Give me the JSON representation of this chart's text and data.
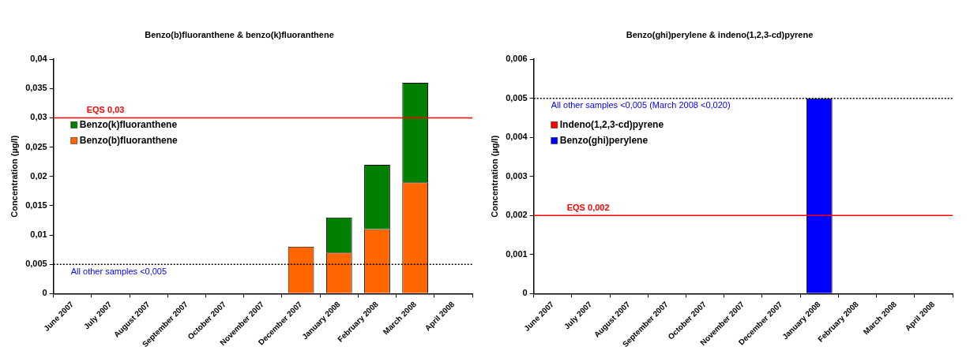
{
  "chart_data": [
    {
      "type": "bar",
      "title": "Benzo(b)fluoranthene & benzo(k)fluoranthene",
      "ylabel": "Concentration (µg/l)",
      "categories": [
        "June 2007",
        "July 2007",
        "August 2007",
        "September 2007",
        "October 2007",
        "November 2007",
        "December 2007",
        "January 2008",
        "February 2008",
        "March 2008",
        "April 2008"
      ],
      "stacked": true,
      "series": [
        {
          "name": "Benzo(b)fluoranthene",
          "color": "#ff6600",
          "values": [
            null,
            null,
            null,
            null,
            null,
            null,
            0.008,
            0.007,
            0.011,
            0.019,
            null
          ]
        },
        {
          "name": "Benzo(k)fluoranthene",
          "color": "#008000",
          "values": [
            null,
            null,
            null,
            null,
            null,
            null,
            null,
            0.006,
            0.011,
            0.017,
            null
          ]
        }
      ],
      "ylim": [
        0,
        0.04
      ],
      "yticks": [
        0,
        {
          "value": 0.005,
          "label": "0,005"
        },
        {
          "value": 0.01,
          "label": "0,01"
        },
        {
          "value": 0.015,
          "label": "0,015"
        },
        {
          "value": 0.02,
          "label": "0,02"
        },
        {
          "value": 0.025,
          "label": "0,025"
        },
        {
          "value": 0.03,
          "label": "0,03"
        },
        {
          "value": 0.035,
          "label": "0,035"
        },
        {
          "value": 0.04,
          "label": "0,04"
        }
      ],
      "ref_lines": [
        {
          "axis": "y",
          "value": 0.03,
          "label": "EQS 0,03",
          "color": "#ff0000",
          "line_style": "solid"
        },
        {
          "axis": "y",
          "value": 0.005,
          "label": "All other samples <0,005",
          "color": "#000000",
          "line_style": "dotted"
        }
      ],
      "grid": false,
      "legend": "left"
    },
    {
      "type": "bar",
      "title": "Benzo(ghi)perylene & indeno(1,2,3-cd)pyrene",
      "ylabel": "Concentration (µg/l)",
      "categories": [
        "June 2007",
        "July 2007",
        "August 2007",
        "September 2007",
        "October 2007",
        "November 2007",
        "December 2007",
        "January 2008",
        "February 2008",
        "March 2008",
        "April 2008"
      ],
      "stacked": true,
      "series": [
        {
          "name": "Benzo(ghi)perylene",
          "color": "#0000ff",
          "values": [
            null,
            null,
            null,
            null,
            null,
            null,
            null,
            0.005,
            null,
            null,
            null
          ]
        },
        {
          "name": "Indeno(1,2,3-cd)pyrene",
          "color": "#ff0000",
          "values": [
            null,
            null,
            null,
            null,
            null,
            null,
            null,
            null,
            null,
            null,
            null
          ]
        }
      ],
      "ylim": [
        0,
        0.006
      ],
      "yticks": [
        0,
        {
          "value": 0.001,
          "label": "0,001"
        },
        {
          "value": 0.002,
          "label": "0,002"
        },
        {
          "value": 0.003,
          "label": "0,003"
        },
        {
          "value": 0.004,
          "label": "0,004"
        },
        {
          "value": 0.005,
          "label": "0,005"
        },
        {
          "value": 0.006,
          "label": "0,006"
        }
      ],
      "ref_lines": [
        {
          "axis": "y",
          "value": 0.002,
          "label": "EQS 0,002",
          "color": "#ff0000",
          "line_style": "solid"
        },
        {
          "axis": "y",
          "value": 0.005,
          "label": "All other samples <0,005 (March 2008 <0,020)",
          "color": "#000000",
          "line_style": "dotted"
        }
      ],
      "grid": false,
      "legend": "left"
    }
  ]
}
